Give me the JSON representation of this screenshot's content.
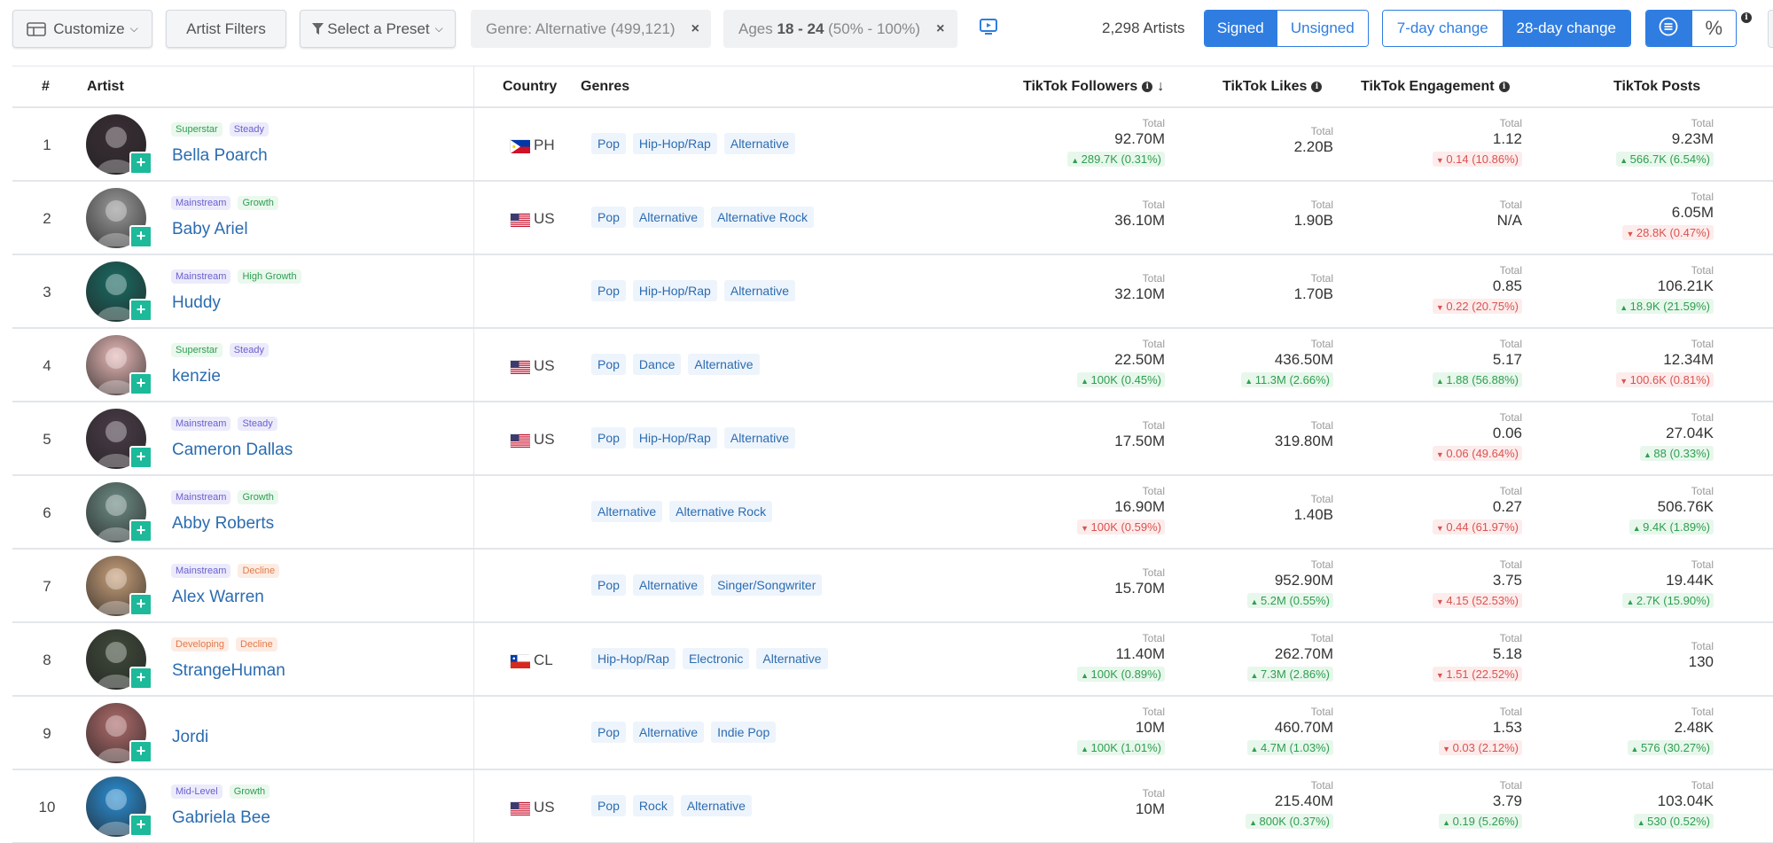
{
  "toolbar": {
    "customize_label": "Customize",
    "artist_filters_label": "Artist Filters",
    "preset_label": "Select a Preset",
    "genre_filter": {
      "prefix": "Genre: Alternative",
      "suffix": " (499,121)"
    },
    "age_filter": {
      "prefix": "Ages ",
      "bold": "18 - 24",
      "suffix": " (50% - 100%)"
    },
    "artist_count": "2,298 Artists",
    "signed_label": "Signed",
    "unsigned_label": "Unsigned",
    "change_7_label": "7-day change",
    "change_28_label": "28-day change",
    "percent_label": "%",
    "remove_glyph": "×"
  },
  "colors": {
    "accent": "#2f7de1",
    "link": "#2b6cb0",
    "up": "#2f9e50",
    "down": "#d9534f",
    "add": "#1cb99a"
  },
  "icons": {
    "customize": "table-settings-icon",
    "preset": "filter-funnel-icon",
    "tv": "tv-play-icon",
    "list": "list-circle-icon",
    "info": "info-icon",
    "sort": "arrow-down-icon"
  },
  "table": {
    "headers": {
      "rank": "#",
      "artist": "Artist",
      "country": "Country",
      "genres": "Genres",
      "followers": "TikTok Followers",
      "likes": "TikTok Likes",
      "engagement": "TikTok Engagement",
      "posts": "TikTok Posts"
    },
    "total_label": "Total",
    "rows": [
      {
        "rank": "1",
        "name": "Bella Poarch",
        "badges": [
          {
            "text": "Superstar",
            "tone": "green"
          },
          {
            "text": "Steady",
            "tone": "purple"
          }
        ],
        "country": "PH",
        "flag": "ph",
        "genres": [
          "Pop",
          "Hip-Hop/Rap",
          "Alternative"
        ],
        "followers": {
          "value": "92.70M",
          "change": "289.7K (0.31%)",
          "dir": "up"
        },
        "likes": {
          "value": "2.20B",
          "change": "",
          "dir": ""
        },
        "engagement": {
          "value": "1.12",
          "change": "0.14 (10.86%)",
          "dir": "down"
        },
        "posts": {
          "value": "9.23M",
          "change": "566.7K (6.54%)",
          "dir": "up"
        },
        "avatar_color": "#3a2e35"
      },
      {
        "rank": "2",
        "name": "Baby Ariel",
        "badges": [
          {
            "text": "Mainstream",
            "tone": "purple"
          },
          {
            "text": "Growth",
            "tone": "green"
          }
        ],
        "country": "US",
        "flag": "us",
        "genres": [
          "Pop",
          "Alternative",
          "Alternative Rock"
        ],
        "followers": {
          "value": "36.10M",
          "change": "",
          "dir": ""
        },
        "likes": {
          "value": "1.90B",
          "change": "",
          "dir": ""
        },
        "engagement": {
          "value": "N/A",
          "change": "",
          "dir": ""
        },
        "posts": {
          "value": "6.05M",
          "change": "28.8K (0.47%)",
          "dir": "down"
        },
        "avatar_color": "#9a9a9a"
      },
      {
        "rank": "3",
        "name": "Huddy",
        "badges": [
          {
            "text": "Mainstream",
            "tone": "purple"
          },
          {
            "text": "High Growth",
            "tone": "green"
          }
        ],
        "country": "",
        "flag": "",
        "genres": [
          "Pop",
          "Hip-Hop/Rap",
          "Alternative"
        ],
        "followers": {
          "value": "32.10M",
          "change": "",
          "dir": ""
        },
        "likes": {
          "value": "1.70B",
          "change": "",
          "dir": ""
        },
        "engagement": {
          "value": "0.85",
          "change": "0.22 (20.75%)",
          "dir": "down"
        },
        "posts": {
          "value": "106.21K",
          "change": "18.9K (21.59%)",
          "dir": "up"
        },
        "avatar_color": "#1a6b63"
      },
      {
        "rank": "4",
        "name": "kenzie",
        "badges": [
          {
            "text": "Superstar",
            "tone": "green"
          },
          {
            "text": "Steady",
            "tone": "purple"
          }
        ],
        "country": "US",
        "flag": "us",
        "genres": [
          "Pop",
          "Dance",
          "Alternative"
        ],
        "followers": {
          "value": "22.50M",
          "change": "100K (0.45%)",
          "dir": "up"
        },
        "likes": {
          "value": "436.50M",
          "change": "11.3M (2.66%)",
          "dir": "up"
        },
        "engagement": {
          "value": "5.17",
          "change": "1.88 (56.88%)",
          "dir": "up"
        },
        "posts": {
          "value": "12.34M",
          "change": "100.6K (0.81%)",
          "dir": "down"
        },
        "avatar_color": "#e6b8b6"
      },
      {
        "rank": "5",
        "name": "Cameron Dallas",
        "badges": [
          {
            "text": "Mainstream",
            "tone": "purple"
          },
          {
            "text": "Steady",
            "tone": "purple"
          }
        ],
        "country": "US",
        "flag": "us",
        "genres": [
          "Pop",
          "Hip-Hop/Rap",
          "Alternative"
        ],
        "followers": {
          "value": "17.50M",
          "change": "",
          "dir": ""
        },
        "likes": {
          "value": "319.80M",
          "change": "",
          "dir": ""
        },
        "engagement": {
          "value": "0.06",
          "change": "0.06 (49.64%)",
          "dir": "down"
        },
        "posts": {
          "value": "27.04K",
          "change": "88 (0.33%)",
          "dir": "up"
        },
        "avatar_color": "#4a3c48"
      },
      {
        "rank": "6",
        "name": "Abby Roberts",
        "badges": [
          {
            "text": "Mainstream",
            "tone": "purple"
          },
          {
            "text": "Growth",
            "tone": "green"
          }
        ],
        "country": "",
        "flag": "",
        "genres": [
          "Alternative",
          "Alternative Rock"
        ],
        "followers": {
          "value": "16.90M",
          "change": "100K (0.59%)",
          "dir": "down"
        },
        "likes": {
          "value": "1.40B",
          "change": "",
          "dir": ""
        },
        "engagement": {
          "value": "0.27",
          "change": "0.44 (61.97%)",
          "dir": "down"
        },
        "posts": {
          "value": "506.76K",
          "change": "9.4K (1.89%)",
          "dir": "up"
        },
        "avatar_color": "#6e8c84"
      },
      {
        "rank": "7",
        "name": "Alex Warren",
        "badges": [
          {
            "text": "Mainstream",
            "tone": "purple"
          },
          {
            "text": "Decline",
            "tone": "orange"
          }
        ],
        "country": "",
        "flag": "",
        "genres": [
          "Pop",
          "Alternative",
          "Singer/Songwriter"
        ],
        "followers": {
          "value": "15.70M",
          "change": "",
          "dir": ""
        },
        "likes": {
          "value": "952.90M",
          "change": "5.2M (0.55%)",
          "dir": "up"
        },
        "engagement": {
          "value": "3.75",
          "change": "4.15 (52.53%)",
          "dir": "down"
        },
        "posts": {
          "value": "19.44K",
          "change": "2.7K (15.90%)",
          "dir": "up"
        },
        "avatar_color": "#c9a07a"
      },
      {
        "rank": "8",
        "name": "StrangeHuman",
        "badges": [
          {
            "text": "Developing",
            "tone": "orange"
          },
          {
            "text": "Decline",
            "tone": "orange"
          }
        ],
        "country": "CL",
        "flag": "cl",
        "genres": [
          "Hip-Hop/Rap",
          "Electronic",
          "Alternative"
        ],
        "followers": {
          "value": "11.40M",
          "change": "100K (0.89%)",
          "dir": "up"
        },
        "likes": {
          "value": "262.70M",
          "change": "7.3M (2.86%)",
          "dir": "up"
        },
        "engagement": {
          "value": "5.18",
          "change": "1.51 (22.52%)",
          "dir": "down"
        },
        "posts": {
          "value": "130",
          "change": "",
          "dir": ""
        },
        "avatar_color": "#3f4a3a"
      },
      {
        "rank": "9",
        "name": "Jordi",
        "badges": [],
        "country": "",
        "flag": "",
        "genres": [
          "Pop",
          "Alternative",
          "Indie Pop"
        ],
        "followers": {
          "value": "10M",
          "change": "100K (1.01%)",
          "dir": "up"
        },
        "likes": {
          "value": "460.70M",
          "change": "4.7M (1.03%)",
          "dir": "up"
        },
        "engagement": {
          "value": "1.53",
          "change": "0.03 (2.12%)",
          "dir": "down"
        },
        "posts": {
          "value": "2.48K",
          "change": "576 (30.27%)",
          "dir": "up"
        },
        "avatar_color": "#b06b6b"
      },
      {
        "rank": "10",
        "name": "Gabriela Bee",
        "badges": [
          {
            "text": "Mid-Level",
            "tone": "purple"
          },
          {
            "text": "Growth",
            "tone": "green"
          }
        ],
        "country": "US",
        "flag": "us",
        "genres": [
          "Pop",
          "Rock",
          "Alternative"
        ],
        "followers": {
          "value": "10M",
          "change": "",
          "dir": ""
        },
        "likes": {
          "value": "215.40M",
          "change": "800K (0.37%)",
          "dir": "up"
        },
        "engagement": {
          "value": "3.79",
          "change": "0.19 (5.26%)",
          "dir": "up"
        },
        "posts": {
          "value": "103.04K",
          "change": "530 (0.52%)",
          "dir": "up"
        },
        "avatar_color": "#2a8fd6"
      }
    ]
  }
}
